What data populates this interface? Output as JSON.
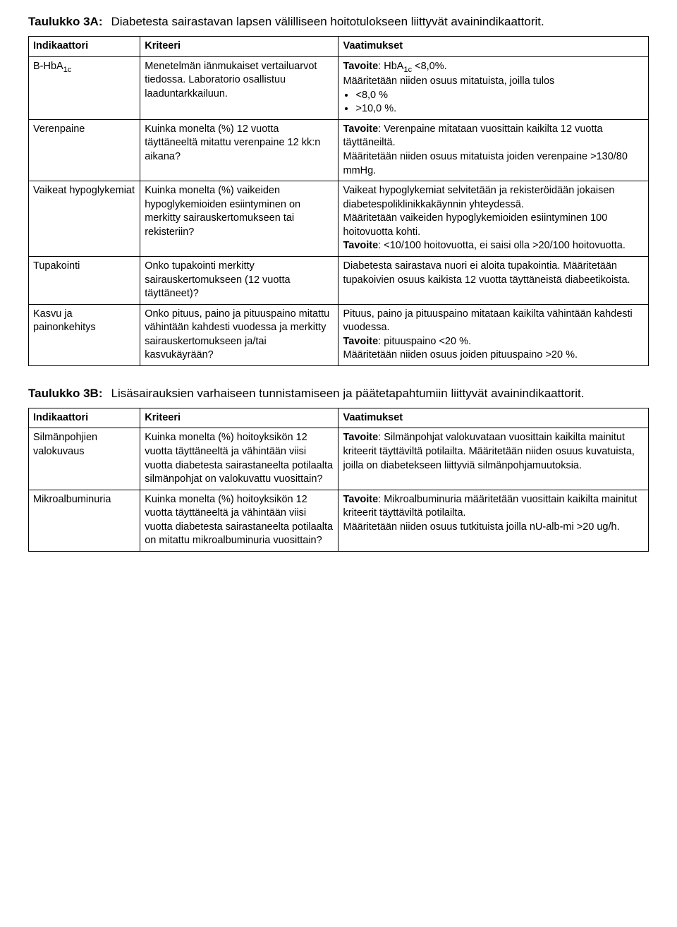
{
  "table3a": {
    "title_label": "Taulukko 3A:",
    "title_desc": "Diabetesta sairastavan lapsen välilliseen hoitotulokseen liittyvät avainindikaattorit.",
    "headers": {
      "indikaattori": "Indikaattori",
      "kriteeri": "Kriteeri",
      "vaatimukset": "Vaatimukset"
    },
    "rows": [
      {
        "indikaattori_html": "B-HbA<span class=\"sub\">1c</span>",
        "kriteeri": "Menetelmän iänmukaiset vertailuarvot tiedossa. Laboratorio osallistuu laaduntarkkailuun.",
        "vaat_html": "<span class=\"bold\">Tavoite</span>: HbA<span class=\"sub\">1c</span> &lt;8,0%.<br>Määritetään niiden osuus mitatuista, joilla tulos<ul class=\"bullets\"><li>&lt;8,0 %</li><li>&gt;10,0 %.</li></ul>"
      },
      {
        "indikaattori": "Verenpaine",
        "kriteeri": "Kuinka monelta (%) 12 vuotta täyttäneeltä mitattu verenpaine 12 kk:n aikana?",
        "vaat_html": "<span class=\"bold\">Tavoite</span>: Verenpaine mitataan vuosittain kaikilta 12 vuotta täyttäneiltä.<br>Määritetään niiden osuus mitatuista joiden verenpaine &gt;130/80 mmHg."
      },
      {
        "indikaattori": "Vaikeat hypoglykemiat",
        "kriteeri": "Kuinka monelta (%) vaikeiden hypoglykemioiden esiintyminen on merkitty sairauskertomukseen tai rekisteriin?",
        "vaat_html": "Vaikeat hypoglykemiat selvitetään ja rekisteröidään jokaisen diabetespoliklinikkakäynnin yhteydessä.<br>Määritetään vaikeiden hypoglykemioiden esiintyminen 100 hoitovuotta kohti.<br><span class=\"bold\">Tavoite</span>: &lt;10/100 hoitovuotta, ei saisi olla &gt;20/100 hoitovuotta."
      },
      {
        "indikaattori": "Tupakointi",
        "kriteeri": "Onko tupakointi merkitty sairauskertomukseen (12 vuotta täyttäneet)?",
        "vaat_html": "Diabetesta sairastava nuori ei aloita tupakointia. Määritetään tupakoivien osuus kaikista 12 vuotta täyttäneistä diabeetikoista."
      },
      {
        "indikaattori": "Kasvu ja painonkehitys",
        "kriteeri": "Onko pituus, paino ja pituuspaino mitattu vähintään kahdesti vuodessa ja merkitty sairauskertomukseen ja/tai kasvukäyrään?",
        "vaat_html": "Pituus, paino ja pituuspaino mitataan kaikilta vähintään kahdesti vuodessa.<br><span class=\"bold\">Tavoite</span>: pituuspaino &lt;20 %.<br>Määritetään niiden osuus joiden pituuspaino &gt;20 %."
      }
    ]
  },
  "table3b": {
    "title_label": "Taulukko 3B:",
    "title_desc": "Lisäsairauksien varhaiseen tunnistamiseen ja päätetapahtumiin liittyvät avainindikaattorit.",
    "headers": {
      "indikaattori": "Indikaattori",
      "kriteeri": "Kriteeri",
      "vaatimukset": "Vaatimukset"
    },
    "rows": [
      {
        "indikaattori": "Silmänpohjien valokuvaus",
        "kriteeri": "Kuinka monelta (%) hoitoyksikön 12 vuotta täyttäneeltä ja vähintään viisi vuotta diabetesta sairastaneelta potilaalta silmänpohjat on valokuvattu vuosittain?",
        "vaat_html": "<span class=\"bold\">Tavoite</span>: Silmänpohjat valokuvataan vuosittain kaikilta mainitut kriteerit täyttäviltä potilailta. Määritetään niiden osuus kuvatuista, joilla on diabetekseen liittyviä silmänpohjamuutoksia."
      },
      {
        "indikaattori": "Mikroalbuminuria",
        "kriteeri": "Kuinka monelta (%) hoitoyksikön 12 vuotta täyttäneeltä ja vähintään viisi vuotta diabetesta sairastaneelta potilaalta on mitattu mikroalbuminuria vuosittain?",
        "vaat_html": "<span class=\"bold\">Tavoite</span>: Mikroalbuminuria määritetään vuosittain kaikilta mainitut kriteerit täyttäviltä potilailta.<br>Määritetään niiden osuus tutkituista joilla nU-alb-mi &gt;20 ug/h."
      }
    ]
  }
}
